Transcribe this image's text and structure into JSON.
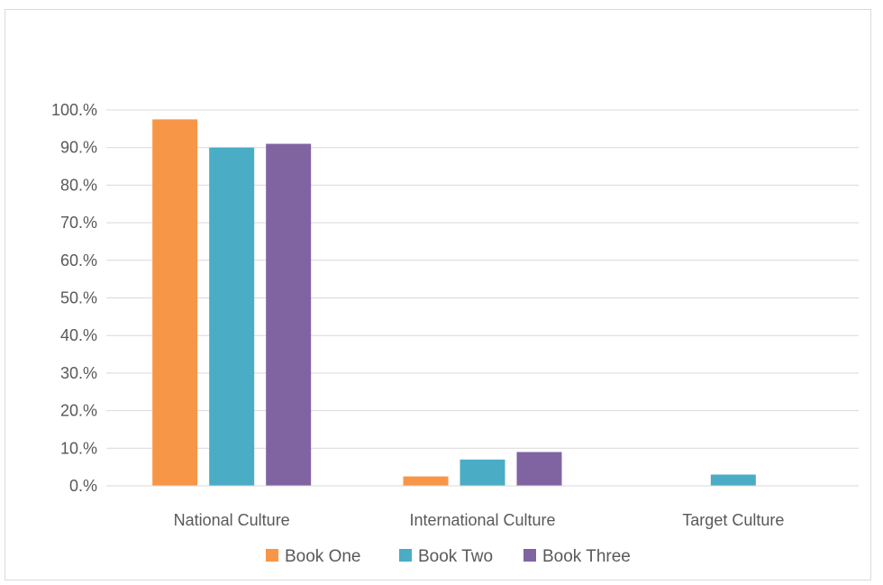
{
  "chart_data": {
    "type": "bar",
    "title": "",
    "xlabel": "",
    "ylabel": "",
    "categories": [
      "National Culture",
      "International Culture",
      "Target Culture"
    ],
    "series": [
      {
        "name": "Book One",
        "color": "#f79646",
        "values": [
          97.5,
          2.5,
          0.0
        ]
      },
      {
        "name": "Book Two",
        "color": "#4bacc6",
        "values": [
          90.0,
          7.0,
          3.0
        ]
      },
      {
        "name": "Book Three",
        "color": "#8064a2",
        "values": [
          91.0,
          9.0,
          0.0
        ]
      }
    ],
    "ylim": [
      0,
      100
    ],
    "yticks": [
      0,
      10,
      20,
      30,
      40,
      50,
      60,
      70,
      80,
      90,
      100
    ],
    "ytick_labels": [
      "0.%",
      "10.%",
      "20.%",
      "30.%",
      "40.%",
      "50.%",
      "60.%",
      "70.%",
      "80.%",
      "90.%",
      "100.%"
    ],
    "grid": true,
    "gridline_color": "#d9d9d9",
    "legend_position": "bottom"
  }
}
